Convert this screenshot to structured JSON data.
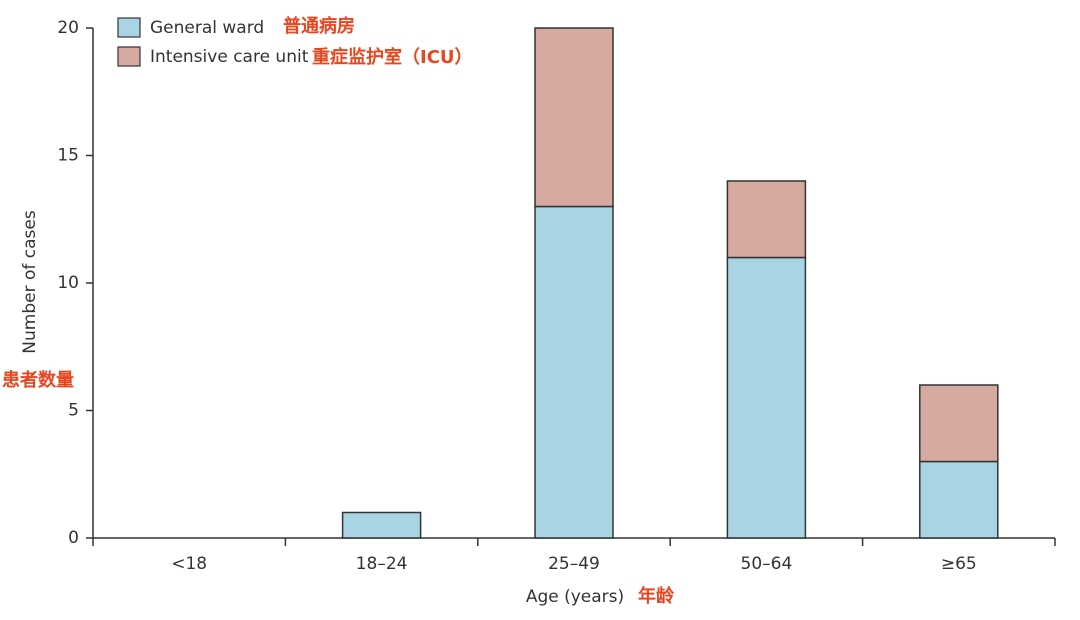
{
  "chart_data": {
    "type": "bar",
    "stacked": true,
    "categories": [
      "<18",
      "18–24",
      "25–49",
      "50–64",
      "≥65"
    ],
    "series": [
      {
        "name": "General ward",
        "color": "#a9d4e3",
        "values": [
          0,
          1,
          13,
          11,
          3
        ]
      },
      {
        "name": "Intensive care unit",
        "color": "#d6a9a1",
        "values": [
          0,
          0,
          7,
          3,
          3
        ]
      }
    ],
    "ylim": [
      0,
      20
    ],
    "yticks": [
      0,
      5,
      10,
      15,
      20
    ],
    "xlabel": "Age (years)",
    "ylabel": "Number of cases",
    "legend": "upper left",
    "annotations": [
      "普通病房",
      "重症监护室（ICU）",
      "患者数量",
      "年龄"
    ]
  }
}
